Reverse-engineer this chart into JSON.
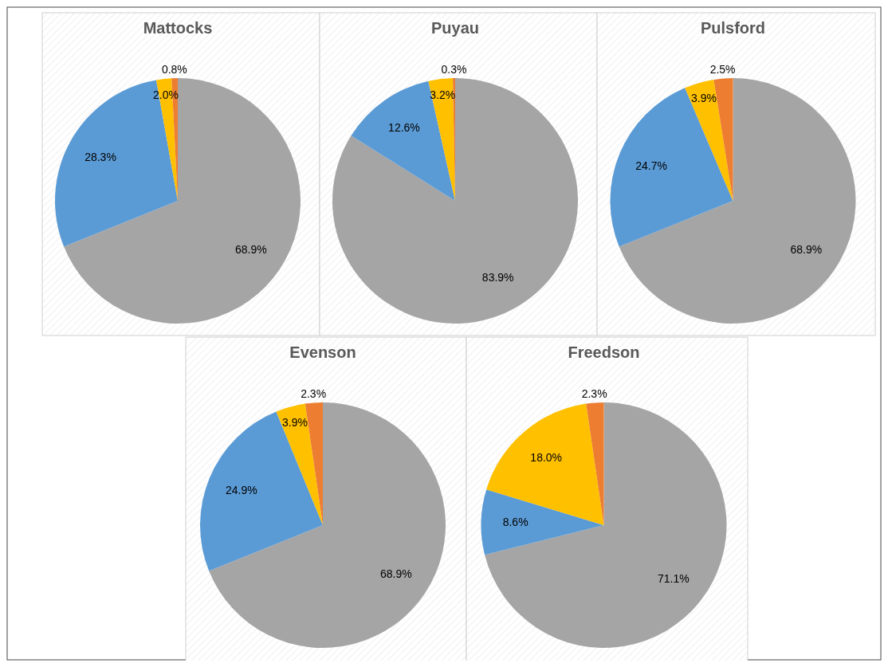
{
  "chart_data": [
    {
      "type": "pie",
      "title": "Mattocks",
      "categories": [
        null,
        null,
        null,
        null
      ],
      "values": [
        68.9,
        28.3,
        2.0,
        0.8
      ],
      "colors": [
        "#a5a5a5",
        "#5b9bd5",
        "#ffc000",
        "#ed7d31"
      ],
      "value_labels": [
        "68.9%",
        "28.3%",
        "2.0%",
        "0.8%"
      ]
    },
    {
      "type": "pie",
      "title": "Puyau",
      "categories": [
        null,
        null,
        null,
        null
      ],
      "values": [
        83.9,
        12.6,
        3.2,
        0.3
      ],
      "colors": [
        "#a5a5a5",
        "#5b9bd5",
        "#ffc000",
        "#ed7d31"
      ],
      "value_labels": [
        "83.9%",
        "12.6%",
        "3.2%",
        "0.3%"
      ]
    },
    {
      "type": "pie",
      "title": "Pulsford",
      "categories": [
        null,
        null,
        null,
        null
      ],
      "values": [
        68.9,
        24.7,
        3.9,
        2.5
      ],
      "colors": [
        "#a5a5a5",
        "#5b9bd5",
        "#ffc000",
        "#ed7d31"
      ],
      "value_labels": [
        "68.9%",
        "24.7%",
        "3.9%",
        "2.5%"
      ]
    },
    {
      "type": "pie",
      "title": "Evenson",
      "categories": [
        null,
        null,
        null,
        null
      ],
      "values": [
        68.9,
        24.9,
        3.9,
        2.3
      ],
      "colors": [
        "#a5a5a5",
        "#5b9bd5",
        "#ffc000",
        "#ed7d31"
      ],
      "value_labels": [
        "68.9%",
        "24.9%",
        "3.9%",
        "2.3%"
      ]
    },
    {
      "type": "pie",
      "title": "Freedson",
      "categories": [
        null,
        null,
        null,
        null
      ],
      "values": [
        71.1,
        8.6,
        18.0,
        2.3
      ],
      "colors": [
        "#a5a5a5",
        "#5b9bd5",
        "#ffc000",
        "#ed7d31"
      ],
      "value_labels": [
        "71.1%",
        "8.6%",
        "18.0%",
        "2.3%"
      ]
    }
  ]
}
